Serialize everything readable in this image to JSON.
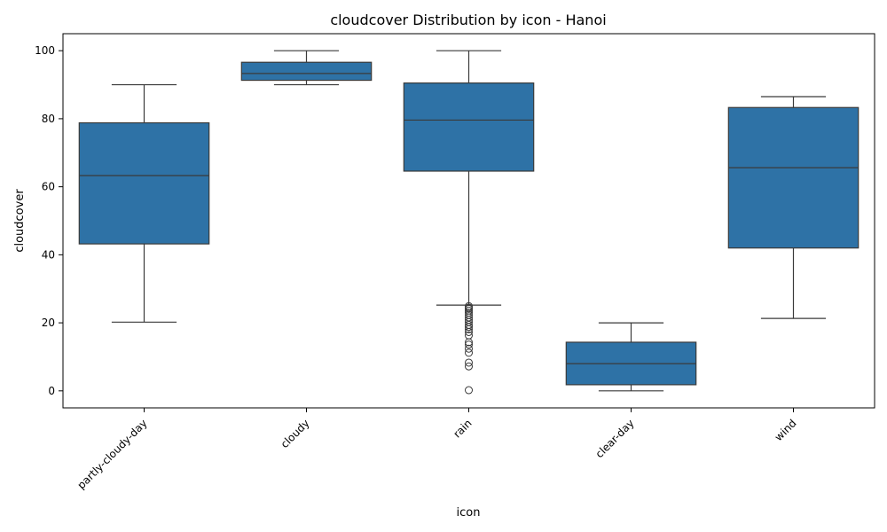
{
  "chart_data": {
    "type": "boxplot",
    "title": "cloudcover Distribution by icon - Hanoi",
    "xlabel": "icon",
    "ylabel": "cloudcover",
    "ylim": [
      -5,
      105
    ],
    "yticks": [
      0,
      20,
      40,
      60,
      80,
      100
    ],
    "categories": [
      "partly-cloudy-day",
      "cloudy",
      "rain",
      "clear-day",
      "wind"
    ],
    "boxes": [
      {
        "category": "partly-cloudy-day",
        "whisker_low": 20.2,
        "q1": 43.2,
        "median": 63.3,
        "q3": 78.8,
        "whisker_high": 90.0,
        "outliers": []
      },
      {
        "category": "cloudy",
        "whisker_low": 90.0,
        "q1": 91.3,
        "median": 93.3,
        "q3": 96.6,
        "whisker_high": 100.0,
        "outliers": []
      },
      {
        "category": "rain",
        "whisker_low": 25.2,
        "q1": 64.6,
        "median": 79.6,
        "q3": 90.5,
        "whisker_high": 100.0,
        "outliers": [
          24.9,
          24.5,
          24.1,
          23.6,
          23.0,
          22.3,
          21.6,
          20.9,
          20.2,
          19.4,
          18.8,
          18.1,
          17.3,
          16.3,
          14.3,
          13.6,
          12.4,
          11.2,
          8.3,
          7.2,
          0.2
        ]
      },
      {
        "category": "clear-day",
        "whisker_low": 0.0,
        "q1": 1.8,
        "median": 8.0,
        "q3": 14.3,
        "whisker_high": 20.0,
        "outliers": []
      },
      {
        "category": "wind",
        "whisker_low": 21.3,
        "q1": 42.0,
        "median": 65.6,
        "q3": 83.3,
        "whisker_high": 86.5,
        "outliers": []
      }
    ],
    "box_color": "#2e72a6",
    "line_color": "#3a3a3a",
    "grid": false
  }
}
